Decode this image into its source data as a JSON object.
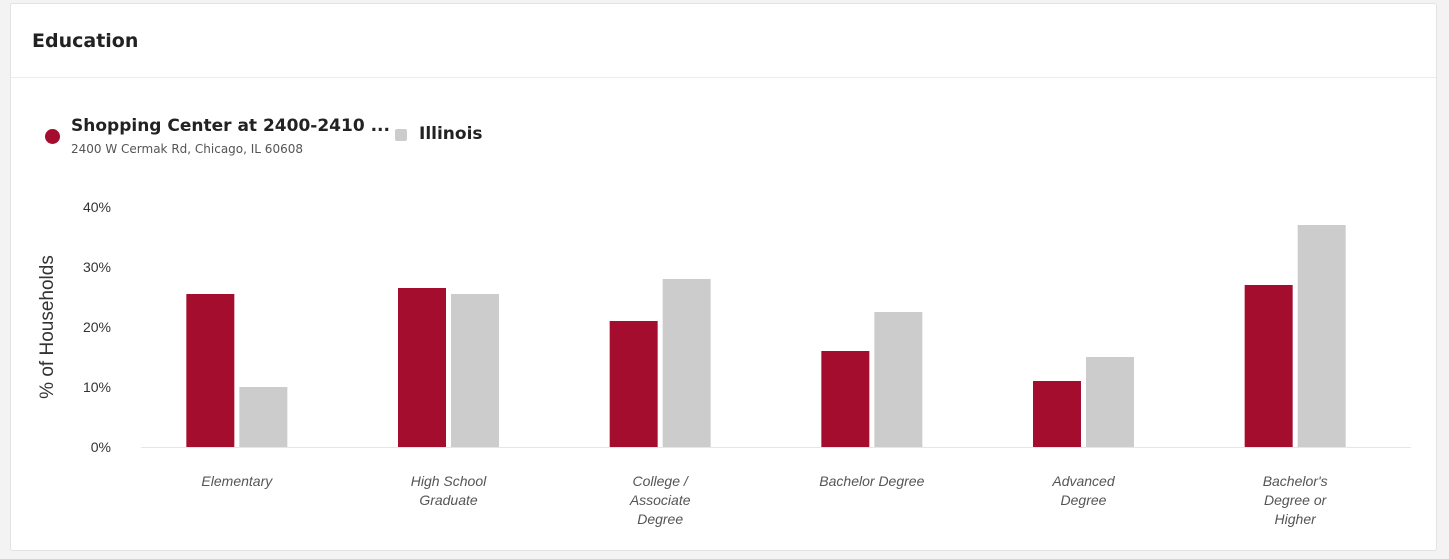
{
  "card": {
    "title": "Education"
  },
  "legend": [
    {
      "name": "Shopping Center at 2400-2410 ...",
      "subtitle": "2400 W Cermak Rd, Chicago, IL 60608",
      "color": "#a50d2e"
    },
    {
      "name": "Illinois",
      "color": "#cccccc"
    }
  ],
  "chart_data": {
    "type": "bar",
    "title": "",
    "xlabel": "",
    "ylabel": "% of Households",
    "ylim": [
      0,
      40
    ],
    "yticks": [
      "0%",
      "10%",
      "20%",
      "30%",
      "40%"
    ],
    "grid": false,
    "categories": [
      [
        "Elementary"
      ],
      [
        "High School",
        "Graduate"
      ],
      [
        "College /",
        "Associate",
        "Degree"
      ],
      [
        "Bachelor Degree"
      ],
      [
        "Advanced",
        "Degree"
      ],
      [
        "Bachelor's",
        "Degree or",
        "Higher"
      ]
    ],
    "series": [
      {
        "name": "Shopping Center at 2400-2410 ...",
        "color": "#a50d2e",
        "values": [
          25.5,
          26.5,
          21,
          16,
          11,
          27
        ]
      },
      {
        "name": "Illinois",
        "color": "#cccccc",
        "values": [
          10,
          25.5,
          28,
          22.5,
          15,
          37
        ]
      }
    ]
  }
}
